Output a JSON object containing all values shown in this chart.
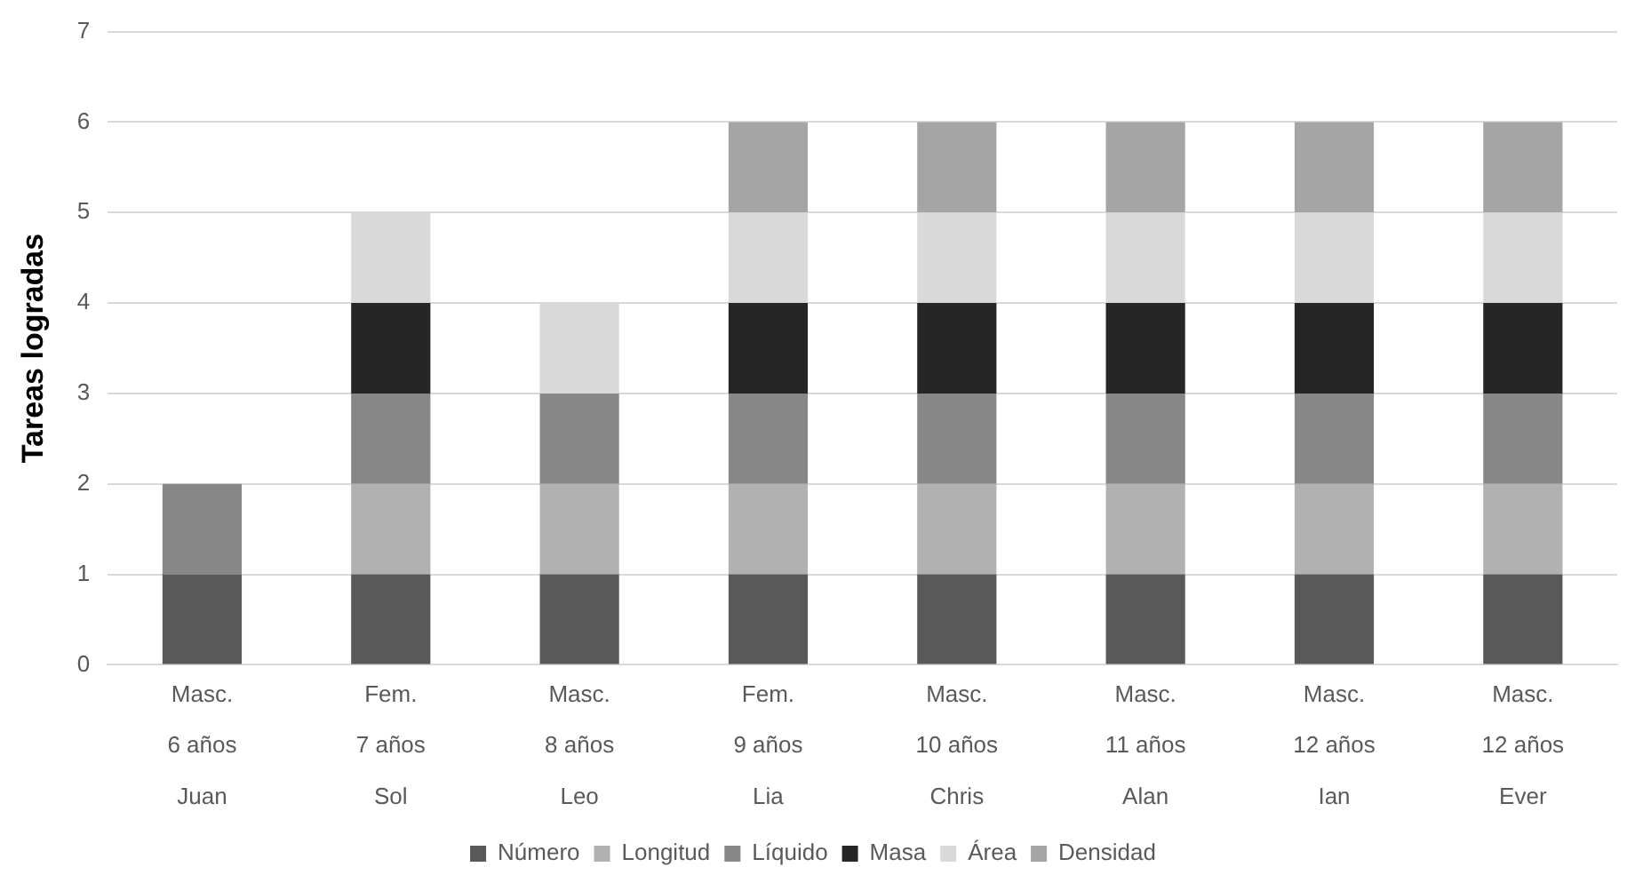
{
  "chart_data": {
    "type": "bar",
    "stacked": true,
    "ylabel": "Tareas logradas",
    "categories": [
      "Masc.\n6 años\nJuan",
      "Fem.\n7 años\nSol",
      "Masc.\n8 años\nLeo",
      "Fem.\n9 años\nLia",
      "Masc.\n10 años\nChris",
      "Masc.\n11 años\nAlan",
      "Masc.\n12 años\nIan",
      "Masc.\n12 años\nEver"
    ],
    "series": [
      {
        "name": "Número",
        "color": "#595959",
        "values": [
          1,
          1,
          1,
          1,
          1,
          1,
          1,
          1
        ]
      },
      {
        "name": "Longitud",
        "color": "#b1b1b1",
        "values": [
          0,
          1,
          1,
          1,
          1,
          1,
          1,
          1
        ]
      },
      {
        "name": "Líquido",
        "color": "#878787",
        "values": [
          1,
          1,
          1,
          1,
          1,
          1,
          1,
          1
        ]
      },
      {
        "name": "Masa",
        "color": "#262626",
        "values": [
          0,
          1,
          0,
          1,
          1,
          1,
          1,
          1
        ]
      },
      {
        "name": "Área",
        "color": "#d9d9d9",
        "values": [
          0,
          1,
          1,
          1,
          1,
          1,
          1,
          1
        ]
      },
      {
        "name": "Densidad",
        "color": "#a5a5a5",
        "values": [
          0,
          0,
          0,
          1,
          1,
          1,
          1,
          1
        ]
      }
    ],
    "ylim": [
      0,
      7
    ],
    "yticks": [
      0,
      1,
      2,
      3,
      4,
      5,
      6,
      7
    ],
    "grid": "y",
    "legend": "bottom"
  }
}
